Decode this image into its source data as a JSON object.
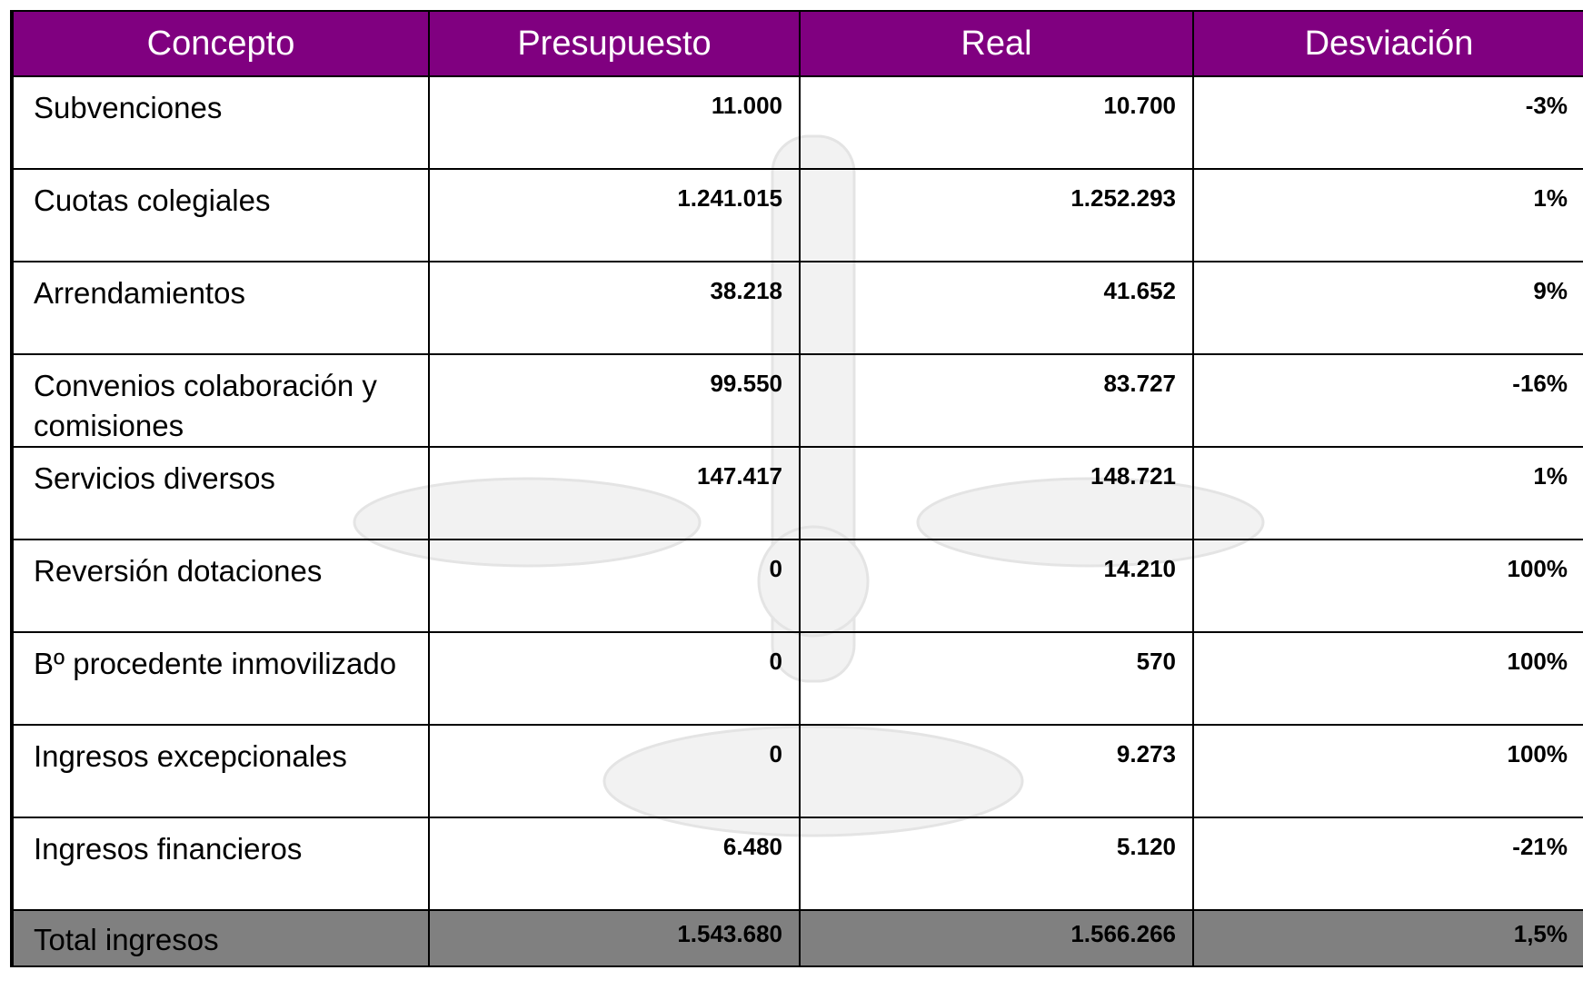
{
  "table": {
    "header": [
      "Concepto",
      "Presupuesto",
      "Real",
      "Desviación"
    ],
    "rows": [
      [
        "Subvenciones",
        "11.000",
        "10.700",
        "-3%"
      ],
      [
        "Cuotas colegiales",
        "1.241.015",
        "1.252.293",
        "1%"
      ],
      [
        "Arrendamientos",
        "38.218",
        "41.652",
        "9%"
      ],
      [
        "Convenios colaboración y comisiones",
        "99.550",
        "83.727",
        "-16%"
      ],
      [
        "Servicios diversos",
        "147.417",
        "148.721",
        "1%"
      ],
      [
        "Reversión dotaciones",
        "0",
        "14.210",
        "100%"
      ],
      [
        "Bº procedente inmovilizado",
        "0",
        "570",
        "100%"
      ],
      [
        "Ingresos excepcionales",
        "0",
        "9.273",
        "100%"
      ],
      [
        "Ingresos financieros",
        "6.480",
        "5.120",
        "-21%"
      ]
    ],
    "total": [
      "Total ingresos",
      "1.543.680",
      "1.566.266",
      "1,5%"
    ]
  }
}
